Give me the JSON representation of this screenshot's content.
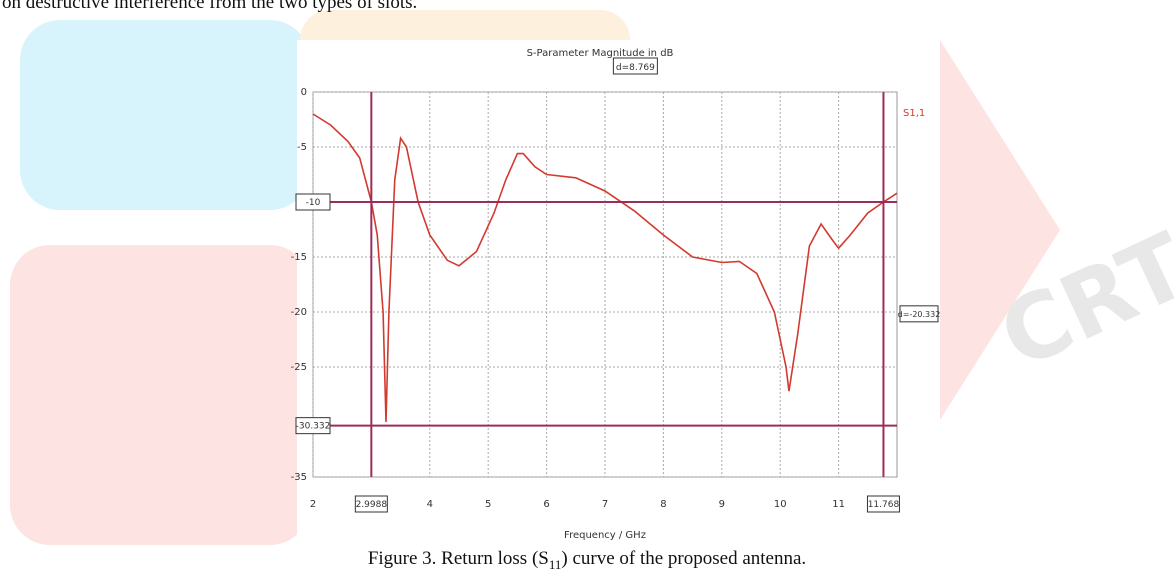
{
  "text_line": "on destructive interference from the two types of slots.",
  "caption": [
    "Figure 3. Return loss (S",
    "11",
    ") curve of the proposed antenna."
  ],
  "chart_data": {
    "type": "line",
    "title": "S-Parameter Magnitude in dB",
    "xlabel": "Frequency / GHz",
    "x": [
      2,
      2.3,
      2.6,
      2.8,
      2.95,
      3.0,
      3.1,
      3.2,
      3.25,
      3.3,
      3.4,
      3.5,
      3.6,
      3.8,
      4.0,
      4.3,
      4.5,
      4.8,
      5.1,
      5.3,
      5.5,
      5.6,
      5.8,
      6.0,
      6.5,
      7.0,
      7.5,
      8.0,
      8.5,
      9.0,
      9.3,
      9.6,
      9.9,
      10.1,
      10.15,
      10.3,
      10.5,
      10.7,
      10.9,
      11.0,
      11.2,
      11.5,
      11.768,
      12
    ],
    "series": [
      {
        "name": "S1,1",
        "color": "#d23a30",
        "values": [
          -2,
          -3,
          -4.5,
          -6,
          -9,
          -10,
          -13,
          -20,
          -30,
          -20,
          -8,
          -4.2,
          -5,
          -10,
          -13,
          -15.3,
          -15.8,
          -14.5,
          -11,
          -8,
          -5.6,
          -5.6,
          -6.8,
          -7.5,
          -7.8,
          -9,
          -10.8,
          -13,
          -15,
          -15.5,
          -15.4,
          -16.5,
          -20,
          -25,
          -27.2,
          -22,
          -14,
          -12,
          -13.5,
          -14.2,
          -13,
          -11,
          -10,
          -9.2
        ]
      }
    ],
    "xlim": [
      2,
      12
    ],
    "xticks": [
      2,
      4,
      5,
      6,
      7,
      8,
      9,
      10,
      11
    ],
    "ylim": [
      -35,
      0
    ],
    "yticks": [
      0,
      -5,
      -15,
      -20,
      -25,
      -35
    ],
    "x_markers": [
      2.9988,
      11.768
    ],
    "y_markers": [
      -10,
      -30.332
    ],
    "delta_labels": [
      "d=8.769",
      "d=-20.332"
    ],
    "grid": true
  }
}
